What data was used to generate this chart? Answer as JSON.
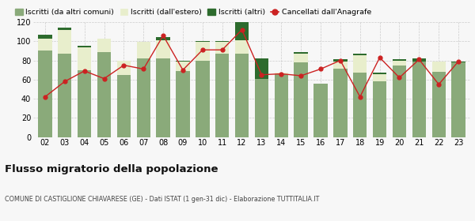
{
  "years": [
    "02",
    "03",
    "04",
    "05",
    "06",
    "07",
    "08",
    "09",
    "10",
    "11",
    "12",
    "13",
    "14",
    "15",
    "16",
    "17",
    "18",
    "19",
    "20",
    "21",
    "22",
    "23"
  ],
  "iscritti_altri_comuni": [
    90,
    87,
    70,
    89,
    65,
    82,
    82,
    69,
    80,
    87,
    87,
    61,
    66,
    78,
    56,
    71,
    67,
    58,
    75,
    79,
    68,
    78
  ],
  "iscritti_estero": [
    13,
    25,
    24,
    14,
    15,
    17,
    19,
    10,
    19,
    12,
    14,
    0,
    1,
    9,
    0,
    8,
    18,
    8,
    5,
    0,
    11,
    0
  ],
  "iscritti_altri": [
    4,
    2,
    1,
    0,
    0,
    0,
    3,
    1,
    1,
    1,
    19,
    21,
    0,
    2,
    0,
    2,
    2,
    1,
    1,
    3,
    0,
    1
  ],
  "cancellati": [
    42,
    58,
    69,
    61,
    75,
    71,
    106,
    70,
    91,
    91,
    112,
    65,
    66,
    64,
    71,
    80,
    42,
    83,
    62,
    81,
    55,
    79
  ],
  "color_altri_comuni": "#8aaa7a",
  "color_estero": "#e8eecc",
  "color_altri": "#2d6b2d",
  "color_cancellati": "#cc2222",
  "bg_color": "#f7f7f7",
  "grid_color": "#cccccc",
  "title": "Flusso migratorio della popolazione",
  "subtitle": "COMUNE DI CASTIGLIONE CHIAVARESE (GE) - Dati ISTAT (1 gen-31 dic) - Elaborazione TUTTITALIA.IT",
  "legend_labels": [
    "Iscritti (da altri comuni)",
    "Iscritti (dall'estero)",
    "Iscritti (altri)",
    "Cancellati dall'Anagrafe"
  ],
  "ylim": [
    0,
    120
  ],
  "yticks": [
    0,
    20,
    40,
    60,
    80,
    100,
    120
  ]
}
